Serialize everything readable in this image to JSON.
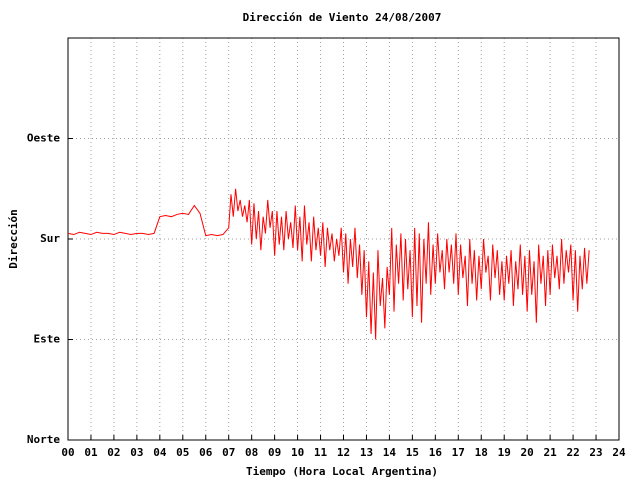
{
  "chart_data": {
    "type": "line",
    "title": "Dirección de Viento 24/08/2007",
    "xlabel": "Tiempo (Hora Local Argentina)",
    "ylabel": "Dirección",
    "color": "#ff0000",
    "grid": true,
    "xlim": [
      0,
      24
    ],
    "xticks": [
      {
        "value": 0,
        "label": "00"
      },
      {
        "value": 1,
        "label": "01"
      },
      {
        "value": 2,
        "label": "02"
      },
      {
        "value": 3,
        "label": "03"
      },
      {
        "value": 4,
        "label": "04"
      },
      {
        "value": 5,
        "label": "05"
      },
      {
        "value": 6,
        "label": "06"
      },
      {
        "value": 7,
        "label": "07"
      },
      {
        "value": 8,
        "label": "08"
      },
      {
        "value": 9,
        "label": "09"
      },
      10,
      11,
      12,
      13,
      14,
      15,
      16,
      17,
      18,
      19,
      20,
      21,
      22,
      23,
      24
    ],
    "ylim": [
      0,
      360
    ],
    "yticks": [
      {
        "value": 0,
        "label": "Norte"
      },
      {
        "value": 90,
        "label": "Este"
      },
      {
        "value": 180,
        "label": "Sur"
      },
      {
        "value": 270,
        "label": "Oeste"
      }
    ],
    "x": [
      0,
      0.25,
      0.5,
      0.75,
      1,
      1.25,
      1.5,
      1.75,
      2,
      2.25,
      2.5,
      2.75,
      3,
      3.25,
      3.5,
      3.75,
      4,
      4.25,
      4.5,
      4.75,
      5,
      5.25,
      5.5,
      5.75,
      6,
      6.25,
      6.5,
      6.75,
      7,
      7.1,
      7.2,
      7.3,
      7.4,
      7.5,
      7.6,
      7.7,
      7.8,
      7.9,
      8,
      8.1,
      8.2,
      8.3,
      8.4,
      8.5,
      8.6,
      8.7,
      8.8,
      8.9,
      9,
      9.1,
      9.2,
      9.3,
      9.4,
      9.5,
      9.6,
      9.7,
      9.8,
      9.9,
      10,
      10.1,
      10.2,
      10.3,
      10.4,
      10.5,
      10.6,
      10.7,
      10.8,
      10.9,
      11,
      11.1,
      11.2,
      11.3,
      11.4,
      11.5,
      11.6,
      11.7,
      11.8,
      11.9,
      12,
      12.1,
      12.2,
      12.3,
      12.4,
      12.5,
      12.6,
      12.7,
      12.8,
      12.9,
      13,
      13.1,
      13.2,
      13.3,
      13.4,
      13.5,
      13.6,
      13.7,
      13.8,
      13.9,
      14,
      14.1,
      14.2,
      14.3,
      14.4,
      14.5,
      14.6,
      14.7,
      14.8,
      14.9,
      15,
      15.1,
      15.2,
      15.3,
      15.4,
      15.5,
      15.6,
      15.7,
      15.8,
      15.9,
      16,
      16.1,
      16.2,
      16.3,
      16.4,
      16.5,
      16.6,
      16.7,
      16.8,
      16.9,
      17,
      17.1,
      17.2,
      17.3,
      17.4,
      17.5,
      17.6,
      17.7,
      17.8,
      17.9,
      18,
      18.1,
      18.2,
      18.3,
      18.4,
      18.5,
      18.6,
      18.7,
      18.8,
      18.9,
      19,
      19.1,
      19.2,
      19.3,
      19.4,
      19.5,
      19.6,
      19.7,
      19.8,
      19.9,
      20,
      20.1,
      20.2,
      20.3,
      20.4,
      20.5,
      20.6,
      20.7,
      20.8,
      20.9,
      21,
      21.1,
      21.2,
      21.3,
      21.4,
      21.5,
      21.6,
      21.7,
      21.8,
      21.9,
      22,
      22.1,
      22.2,
      22.3,
      22.4,
      22.5,
      22.6,
      22.7
    ],
    "values": [
      185,
      184,
      186,
      185,
      184,
      186,
      185,
      185,
      184,
      186,
      185,
      184,
      185,
      185,
      184,
      185,
      200,
      201,
      200,
      202,
      203,
      202,
      210,
      203,
      183,
      184,
      183,
      184,
      190,
      220,
      200,
      225,
      205,
      215,
      200,
      210,
      195,
      215,
      175,
      212,
      180,
      205,
      170,
      200,
      185,
      215,
      190,
      205,
      165,
      205,
      175,
      200,
      170,
      205,
      180,
      195,
      172,
      210,
      170,
      200,
      160,
      210,
      175,
      195,
      160,
      200,
      170,
      190,
      165,
      195,
      155,
      190,
      170,
      185,
      160,
      180,
      165,
      190,
      150,
      185,
      140,
      180,
      155,
      190,
      145,
      175,
      130,
      170,
      110,
      160,
      95,
      150,
      90,
      170,
      120,
      145,
      100,
      155,
      130,
      190,
      115,
      175,
      140,
      185,
      125,
      180,
      135,
      170,
      110,
      190,
      120,
      185,
      105,
      180,
      140,
      195,
      130,
      175,
      140,
      185,
      150,
      170,
      135,
      180,
      150,
      175,
      140,
      185,
      130,
      175,
      145,
      165,
      120,
      180,
      140,
      170,
      125,
      165,
      135,
      180,
      150,
      165,
      125,
      175,
      145,
      170,
      130,
      160,
      125,
      165,
      140,
      170,
      120,
      160,
      135,
      175,
      130,
      165,
      115,
      170,
      130,
      160,
      105,
      175,
      140,
      165,
      120,
      170,
      130,
      175,
      145,
      165,
      135,
      180,
      140,
      170,
      150,
      175,
      125,
      170,
      115,
      165,
      135,
      172,
      140,
      170
    ]
  }
}
